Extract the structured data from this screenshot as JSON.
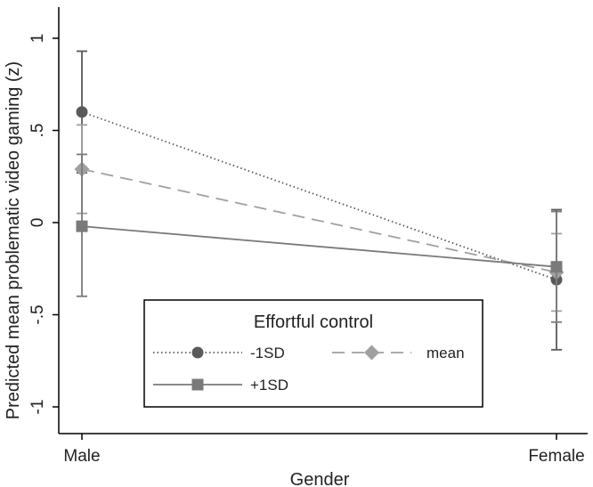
{
  "chart_data": {
    "type": "line",
    "title": "",
    "xlabel": "Gender",
    "ylabel": "Predicted mean problematic video gaming (z)",
    "categories": [
      "Male",
      "Female"
    ],
    "y_ticks": [
      1,
      0.5,
      0,
      -0.5,
      -1
    ],
    "y_tick_labels": [
      "1",
      ".5",
      "0",
      "-.5",
      "-1"
    ],
    "ylim": [
      -1.15,
      1.1
    ],
    "grid": false,
    "legend": {
      "title": "Effortful control",
      "placement": "bottom-center"
    },
    "series": [
      {
        "name": "-1SD",
        "values": [
          0.6,
          -0.31
        ],
        "ci_low": [
          0.27,
          -0.69
        ],
        "ci_high": [
          0.93,
          0.07
        ],
        "color": "#5a5a5a",
        "marker": "circle",
        "line_style": "dotted"
      },
      {
        "name": "mean",
        "values": [
          0.29,
          -0.27
        ],
        "ci_low": [
          0.05,
          -0.48
        ],
        "ci_high": [
          0.53,
          -0.06
        ],
        "color": "#a0a0a0",
        "marker": "diamond",
        "line_style": "dashed"
      },
      {
        "name": "+1SD",
        "values": [
          -0.02,
          -0.24
        ],
        "ci_low": [
          -0.4,
          -0.54
        ],
        "ci_high": [
          0.37,
          0.06
        ],
        "color": "#7a7a7a",
        "marker": "square",
        "line_style": "solid"
      }
    ]
  }
}
